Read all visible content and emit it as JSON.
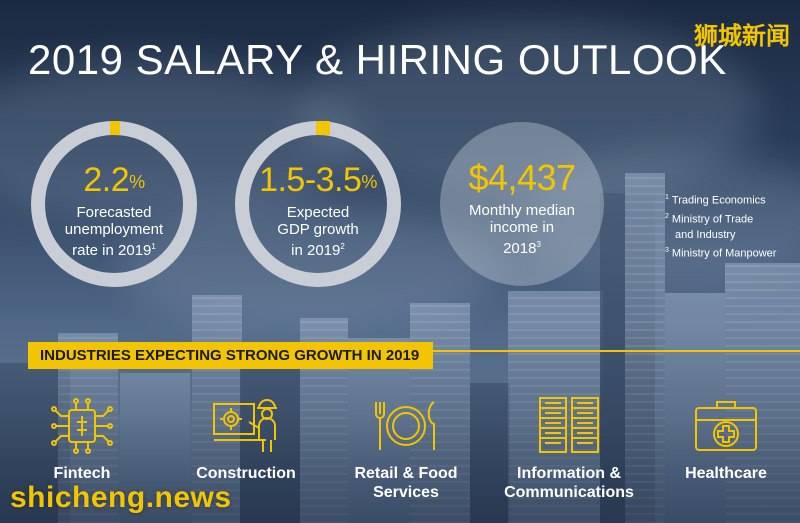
{
  "title": "2019 SALARY & HIRING OUTLOOK",
  "brand_top": "狮城新闻",
  "stats": [
    {
      "value": "2.2",
      "unit": "%",
      "label_lines": [
        "Forecasted",
        "unemployment",
        "rate in 2019"
      ],
      "footnote": "1",
      "style": "ring"
    },
    {
      "value": "1.5-3.5",
      "unit": "%",
      "label_lines": [
        "Expected",
        "GDP growth",
        "in 2019"
      ],
      "footnote": "2",
      "style": "ring"
    },
    {
      "value": "$4,437",
      "unit": "",
      "label_lines": [
        "Monthly median",
        "income in",
        "2018"
      ],
      "footnote": "3",
      "style": "disc"
    }
  ],
  "footnotes": [
    {
      "num": "1",
      "text": "Trading Economics"
    },
    {
      "num": "2",
      "text": "Ministry of Trade",
      "cont": "and Industry"
    },
    {
      "num": "3",
      "text": "Ministry of Manpower"
    }
  ],
  "banner": "INDUSTRIES EXPECTING STRONG GROWTH IN 2019",
  "industries": [
    {
      "label_lines": [
        "Fintech"
      ],
      "icon": "circuit-chip-icon"
    },
    {
      "label_lines": [
        "Construction"
      ],
      "icon": "construction-worker-icon"
    },
    {
      "label_lines": [
        "Retail & Food",
        "Services"
      ],
      "icon": "plate-cutlery-icon"
    },
    {
      "label_lines": [
        "Information &",
        "Communications"
      ],
      "icon": "server-racks-icon"
    },
    {
      "label_lines": [
        "Healthcare"
      ],
      "icon": "medical-kit-icon"
    }
  ],
  "watermark": "shicheng.news",
  "colors": {
    "accent": "#f2c500",
    "text": "#ffffff",
    "ring": "#c9ced6"
  }
}
